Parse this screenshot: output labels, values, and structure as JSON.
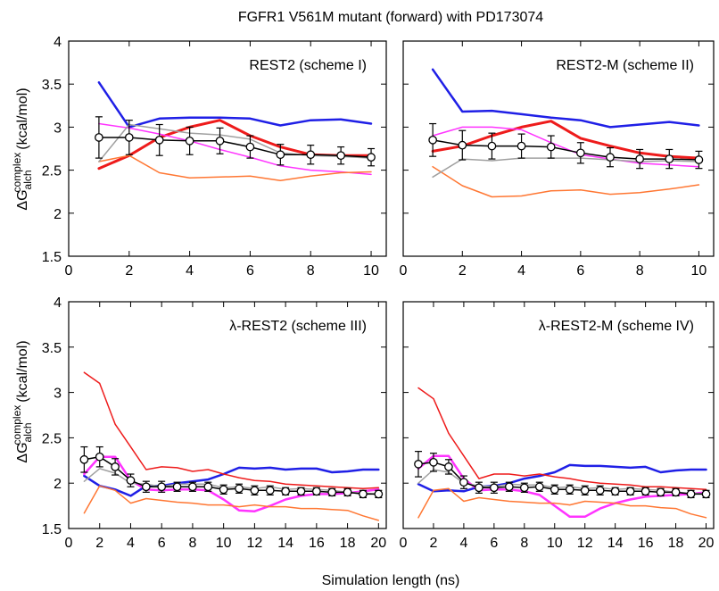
{
  "figure": {
    "title": "FGFR1 V561M mutant (forward) with PD173074",
    "xlabel": "Simulation length (ns)",
    "ylabel_prefix": "ΔG",
    "ylabel_sub": "alch",
    "ylabel_sup": "complex",
    "ylabel_unit": "(kcal/mol)"
  },
  "colors": {
    "blue": "#1f1fe6",
    "red": "#ee1b1b",
    "magenta": "#ff33ff",
    "orange": "#ff7733",
    "gray": "#a0a0a0",
    "black": "#000000"
  },
  "chart_data": [
    {
      "type": "line",
      "title": "REST2 (scheme I)",
      "xlim": [
        0,
        10.5
      ],
      "ylim": [
        1.5,
        4
      ],
      "xticks": [
        0,
        2,
        4,
        6,
        8,
        10
      ],
      "yticks": [
        1.5,
        2,
        2.5,
        3,
        3.5,
        4
      ],
      "x": [
        1,
        2,
        3,
        4,
        5,
        6,
        7,
        8,
        9,
        10
      ],
      "series": [
        {
          "color": "blue",
          "width": 2.5,
          "values": [
            3.52,
            3.0,
            3.1,
            3.11,
            3.11,
            3.1,
            3.02,
            3.08,
            3.09,
            3.04
          ]
        },
        {
          "color": "red",
          "width": 3,
          "values": [
            2.52,
            2.67,
            2.88,
            3.0,
            3.08,
            2.9,
            2.77,
            2.68,
            2.67,
            2.67
          ]
        },
        {
          "color": "magenta",
          "width": 1.5,
          "values": [
            3.04,
            2.99,
            2.92,
            2.84,
            2.74,
            2.65,
            2.55,
            2.5,
            2.48,
            2.45
          ]
        },
        {
          "color": "orange",
          "width": 1.5,
          "values": [
            2.6,
            2.67,
            2.47,
            2.41,
            2.42,
            2.43,
            2.38,
            2.43,
            2.47,
            2.48
          ]
        },
        {
          "color": "gray",
          "width": 1.5,
          "values": [
            2.6,
            3.03,
            2.98,
            2.93,
            2.91,
            2.86,
            2.7,
            2.67,
            2.66,
            2.64
          ]
        },
        {
          "color": "black",
          "width": 1.5,
          "marker": "circle",
          "values": [
            2.88,
            2.88,
            2.85,
            2.84,
            2.84,
            2.77,
            2.68,
            2.68,
            2.67,
            2.65
          ],
          "errors": [
            0.24,
            0.2,
            0.18,
            0.16,
            0.15,
            0.13,
            0.12,
            0.11,
            0.1,
            0.1
          ]
        }
      ]
    },
    {
      "type": "line",
      "title": "REST2-M (scheme II)",
      "xlim": [
        0,
        10.5
      ],
      "ylim": [
        1.5,
        4
      ],
      "xticks": [
        0,
        2,
        4,
        6,
        8,
        10
      ],
      "yticks": [
        1.5,
        2,
        2.5,
        3,
        3.5,
        4
      ],
      "x": [
        1,
        2,
        3,
        4,
        5,
        6,
        7,
        8,
        9,
        10
      ],
      "series": [
        {
          "color": "blue",
          "width": 2.5,
          "values": [
            3.67,
            3.18,
            3.19,
            3.15,
            3.11,
            3.08,
            3.0,
            3.03,
            3.06,
            3.02
          ]
        },
        {
          "color": "red",
          "width": 3,
          "values": [
            2.72,
            2.78,
            2.9,
            3.0,
            3.07,
            2.87,
            2.78,
            2.7,
            2.66,
            2.64
          ]
        },
        {
          "color": "magenta",
          "width": 1.5,
          "values": [
            2.9,
            3.0,
            3.0,
            2.97,
            2.82,
            2.68,
            2.63,
            2.58,
            2.56,
            2.54
          ]
        },
        {
          "color": "orange",
          "width": 1.5,
          "values": [
            2.54,
            2.32,
            2.19,
            2.2,
            2.26,
            2.27,
            2.22,
            2.24,
            2.28,
            2.33
          ]
        },
        {
          "color": "gray",
          "width": 1.5,
          "values": [
            2.42,
            2.63,
            2.61,
            2.64,
            2.64,
            2.64,
            2.62,
            2.6,
            2.61,
            2.6
          ]
        },
        {
          "color": "black",
          "width": 1.5,
          "marker": "circle",
          "values": [
            2.85,
            2.79,
            2.78,
            2.78,
            2.77,
            2.7,
            2.65,
            2.63,
            2.63,
            2.62
          ],
          "errors": [
            0.19,
            0.17,
            0.15,
            0.14,
            0.13,
            0.12,
            0.11,
            0.11,
            0.11,
            0.1
          ]
        }
      ]
    },
    {
      "type": "line",
      "title": "λ-REST2 (scheme III)",
      "xlim": [
        0,
        20.5
      ],
      "ylim": [
        1.5,
        4
      ],
      "xticks": [
        0,
        2,
        4,
        6,
        8,
        10,
        12,
        14,
        16,
        18,
        20
      ],
      "yticks": [
        1.5,
        2,
        2.5,
        3,
        3.5,
        4
      ],
      "x": [
        1,
        2,
        3,
        4,
        5,
        6,
        7,
        8,
        9,
        10,
        11,
        12,
        13,
        14,
        15,
        16,
        17,
        18,
        19,
        20
      ],
      "series": [
        {
          "color": "blue",
          "width": 2.5,
          "values": [
            2.08,
            1.97,
            1.93,
            1.86,
            1.97,
            1.97,
            2.0,
            2.02,
            2.04,
            2.1,
            2.17,
            2.16,
            2.17,
            2.15,
            2.16,
            2.16,
            2.12,
            2.13,
            2.15,
            2.15
          ]
        },
        {
          "color": "red",
          "width": 1.5,
          "values": [
            3.22,
            3.1,
            2.65,
            2.4,
            2.15,
            2.18,
            2.17,
            2.13,
            2.15,
            2.1,
            2.06,
            2.03,
            2.02,
            1.99,
            1.98,
            1.97,
            1.96,
            1.95,
            1.94,
            1.95
          ]
        },
        {
          "color": "magenta",
          "width": 2.5,
          "values": [
            2.1,
            2.29,
            2.29,
            2.03,
            1.93,
            1.92,
            1.93,
            1.93,
            1.92,
            1.82,
            1.7,
            1.69,
            1.75,
            1.82,
            1.86,
            1.88,
            1.88,
            1.89,
            1.91,
            1.93
          ]
        },
        {
          "color": "orange",
          "width": 1.5,
          "values": [
            1.67,
            1.97,
            1.92,
            1.78,
            1.83,
            1.81,
            1.79,
            1.78,
            1.76,
            1.76,
            1.74,
            1.76,
            1.74,
            1.74,
            1.72,
            1.72,
            1.71,
            1.7,
            1.64,
            1.59
          ]
        },
        {
          "color": "gray",
          "width": 1.5,
          "values": [
            2.02,
            2.16,
            2.11,
            2.0,
            1.99,
            1.96,
            1.99,
            1.99,
            1.99,
            1.95,
            1.96,
            1.94,
            1.96,
            1.93,
            1.94,
            1.93,
            1.92,
            1.9,
            1.89,
            1.88
          ]
        },
        {
          "color": "black",
          "width": 1.5,
          "marker": "circle",
          "values": [
            2.26,
            2.29,
            2.18,
            2.03,
            1.96,
            1.96,
            1.96,
            1.96,
            1.96,
            1.93,
            1.94,
            1.92,
            1.92,
            1.91,
            1.91,
            1.91,
            1.9,
            1.9,
            1.88,
            1.88
          ],
          "errors": [
            0.14,
            0.11,
            0.09,
            0.07,
            0.06,
            0.06,
            0.05,
            0.05,
            0.05,
            0.05,
            0.05,
            0.05,
            0.05,
            0.04,
            0.04,
            0.04,
            0.04,
            0.04,
            0.04,
            0.04
          ]
        }
      ]
    },
    {
      "type": "line",
      "title": "λ-REST2-M (scheme IV)",
      "xlim": [
        0,
        20.5
      ],
      "ylim": [
        1.5,
        4
      ],
      "xticks": [
        0,
        2,
        4,
        6,
        8,
        10,
        12,
        14,
        16,
        18,
        20
      ],
      "yticks": [
        1.5,
        2,
        2.5,
        3,
        3.5,
        4
      ],
      "x": [
        1,
        2,
        3,
        4,
        5,
        6,
        7,
        8,
        9,
        10,
        11,
        12,
        13,
        14,
        15,
        16,
        17,
        18,
        19,
        20
      ],
      "series": [
        {
          "color": "blue",
          "width": 2.5,
          "values": [
            1.99,
            1.91,
            1.92,
            1.91,
            1.96,
            1.97,
            2.0,
            2.05,
            2.08,
            2.12,
            2.2,
            2.19,
            2.19,
            2.18,
            2.17,
            2.18,
            2.12,
            2.14,
            2.15,
            2.15
          ]
        },
        {
          "color": "red",
          "width": 1.5,
          "values": [
            3.05,
            2.93,
            2.55,
            2.3,
            2.05,
            2.1,
            2.1,
            2.08,
            2.1,
            2.07,
            2.05,
            2.02,
            2.0,
            1.99,
            1.98,
            1.96,
            1.96,
            1.95,
            1.94,
            1.93
          ]
        },
        {
          "color": "magenta",
          "width": 2.5,
          "values": [
            2.16,
            2.3,
            2.3,
            2.05,
            1.92,
            1.93,
            1.93,
            1.91,
            1.87,
            1.75,
            1.63,
            1.63,
            1.72,
            1.78,
            1.82,
            1.85,
            1.86,
            1.87,
            1.88,
            1.9
          ]
        },
        {
          "color": "orange",
          "width": 1.5,
          "values": [
            1.62,
            1.92,
            1.94,
            1.8,
            1.84,
            1.82,
            1.8,
            1.79,
            1.78,
            1.78,
            1.76,
            1.8,
            1.79,
            1.78,
            1.75,
            1.75,
            1.73,
            1.72,
            1.66,
            1.62
          ]
        },
        {
          "color": "gray",
          "width": 1.5,
          "values": [
            2.0,
            2.15,
            2.12,
            2.0,
            1.97,
            1.96,
            1.99,
            1.98,
            1.98,
            1.95,
            1.96,
            1.94,
            1.95,
            1.93,
            1.94,
            1.93,
            1.92,
            1.9,
            1.89,
            1.88
          ]
        },
        {
          "color": "black",
          "width": 1.5,
          "marker": "circle",
          "values": [
            2.21,
            2.23,
            2.18,
            2.01,
            1.95,
            1.95,
            1.96,
            1.95,
            1.96,
            1.93,
            1.93,
            1.92,
            1.92,
            1.91,
            1.91,
            1.91,
            1.9,
            1.9,
            1.88,
            1.88
          ],
          "errors": [
            0.14,
            0.1,
            0.08,
            0.07,
            0.06,
            0.06,
            0.05,
            0.05,
            0.05,
            0.05,
            0.05,
            0.05,
            0.05,
            0.04,
            0.04,
            0.04,
            0.04,
            0.04,
            0.04,
            0.04
          ]
        }
      ]
    }
  ]
}
